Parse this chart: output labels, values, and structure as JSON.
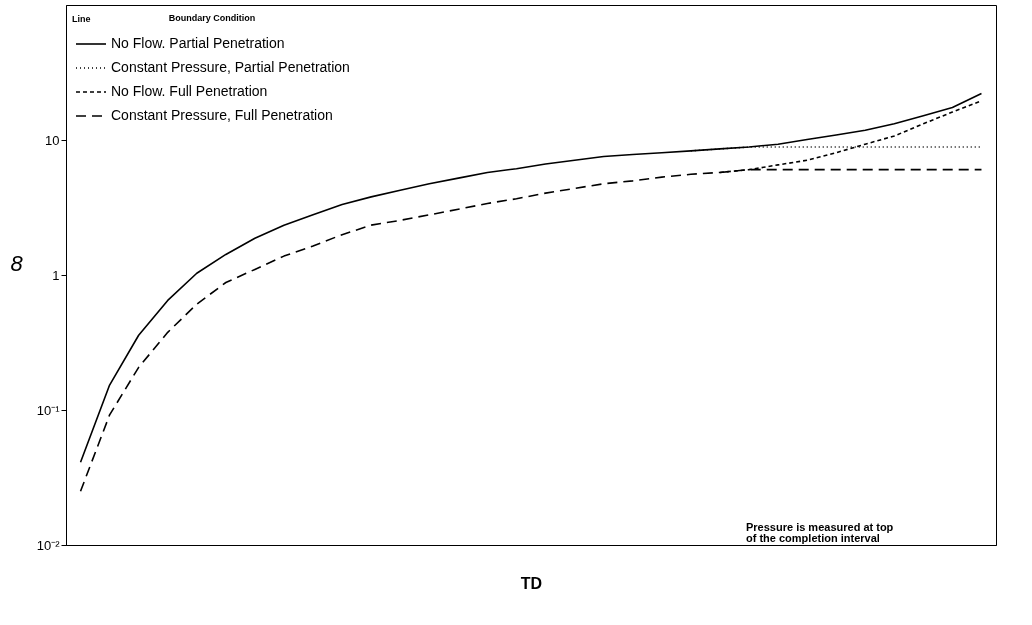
{
  "chart_data": {
    "type": "line",
    "xlabel": "TD",
    "ylabel": "8",
    "legend_title": "Boundary Condition",
    "categories": [
      null,
      null,
      null,
      null,
      null,
      null,
      null,
      null,
      null,
      null,
      null,
      null,
      null,
      null,
      null,
      null,
      null,
      null,
      null,
      null,
      null,
      null,
      null,
      null,
      null,
      null,
      null,
      null,
      null,
      null,
      null,
      null
    ],
    "series": [
      {
        "name": "No Flow. Partial Penetration",
        "color": "#000000",
        "line_style": "solid",
        "values": [
          0.041,
          0.153,
          0.358,
          0.648,
          1.03,
          1.42,
          1.87,
          2.34,
          2.79,
          3.33,
          3.79,
          4.24,
          4.74,
          5.22,
          5.75,
          6.13,
          6.64,
          7.08,
          7.55,
          7.8,
          8.05,
          8.31,
          8.59,
          8.87,
          9.31,
          10.1,
          10.9,
          11.8,
          13.2,
          15.1,
          17.4,
          22.1
        ]
      },
      {
        "name": "Constant Pressure, Partial Penetration",
        "color": "#000000",
        "line_style": "dotted",
        "values": [
          null,
          null,
          null,
          null,
          null,
          null,
          null,
          null,
          null,
          null,
          null,
          null,
          null,
          null,
          null,
          null,
          null,
          null,
          null,
          null,
          null,
          8.31,
          8.59,
          8.87,
          8.87,
          8.87,
          8.87,
          8.87,
          8.87,
          8.87,
          8.87,
          8.87
        ]
      },
      {
        "name": "No Flow.  Full Penetration",
        "color": "#000000",
        "line_style": "dashed",
        "values": [
          null,
          null,
          null,
          null,
          null,
          null,
          null,
          null,
          null,
          null,
          null,
          null,
          null,
          null,
          null,
          null,
          null,
          null,
          null,
          null,
          null,
          null,
          5.75,
          6.03,
          6.54,
          7.08,
          8.05,
          9.31,
          10.7,
          13.2,
          16.1,
          19.5
        ]
      },
      {
        "name": "Constant Pressure, Full Penetration",
        "color": "#000000",
        "line_style": "longdash",
        "values": [
          0.025,
          0.092,
          0.207,
          0.376,
          0.608,
          0.88,
          1.1,
          1.38,
          1.64,
          1.99,
          2.34,
          2.54,
          2.79,
          3.07,
          3.39,
          3.67,
          4.04,
          4.38,
          4.74,
          4.98,
          5.31,
          5.57,
          5.75,
          6.03,
          6.03,
          6.03,
          6.03,
          6.03,
          6.03,
          6.03,
          6.03,
          6.03
        ]
      }
    ],
    "log": "y",
    "ylim": [
      0.01,
      100
    ],
    "yticks": [
      {
        "value": 0.01,
        "label": "10⁻²"
      },
      {
        "value": 0.1,
        "label": "10⁻¹"
      },
      1,
      10
    ],
    "tick_labels": "y",
    "grid": false,
    "legend": "top left",
    "annotations": [
      "Line",
      "Pressure is measured at top\nof the completion interval"
    ]
  }
}
